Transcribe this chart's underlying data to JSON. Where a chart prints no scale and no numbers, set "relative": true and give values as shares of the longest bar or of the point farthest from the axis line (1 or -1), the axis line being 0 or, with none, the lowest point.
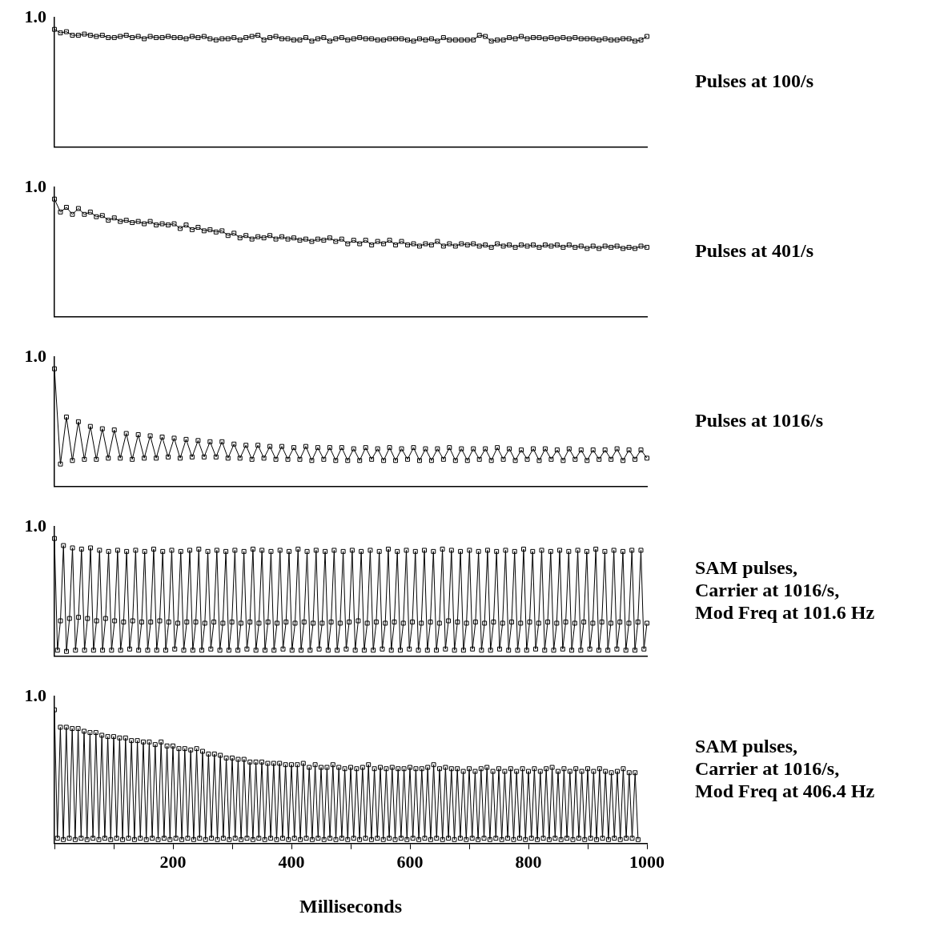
{
  "chart_data": [
    {
      "type": "line",
      "annotations": [
        "1.0",
        "Pulses at 100/s"
      ],
      "relative": true,
      "color": "#000000",
      "marker": "square",
      "categories": [
        null,
        null,
        null,
        null,
        null,
        null,
        null,
        null,
        null,
        null,
        null,
        null,
        null,
        null,
        null,
        null,
        null,
        null,
        null,
        null,
        null,
        null,
        null,
        null,
        null,
        null,
        null,
        null,
        null,
        null,
        null,
        null,
        null,
        null,
        null,
        null,
        null,
        null,
        null,
        null,
        null,
        null,
        null,
        null,
        null,
        null,
        null,
        null,
        null,
        null,
        null,
        null,
        null,
        null,
        null,
        null,
        null,
        null,
        null,
        null,
        null,
        null,
        null,
        null,
        null,
        null,
        null,
        null,
        null,
        null,
        null,
        null,
        null,
        null,
        null,
        null,
        null,
        null,
        null,
        null,
        null,
        null,
        null,
        null,
        null,
        null,
        null,
        null,
        null,
        null,
        null,
        null,
        null,
        null,
        null,
        null,
        null,
        null,
        null,
        null
      ],
      "values": [
        1,
        0.97,
        0.98,
        0.95,
        0.95,
        0.96,
        0.95,
        0.94,
        0.95,
        0.93,
        0.93,
        0.94,
        0.95,
        0.93,
        0.94,
        0.92,
        0.94,
        0.93,
        0.93,
        0.94,
        0.93,
        0.93,
        0.92,
        0.94,
        0.93,
        0.94,
        0.92,
        0.91,
        0.92,
        0.92,
        0.93,
        0.91,
        0.93,
        0.94,
        0.95,
        0.91,
        0.93,
        0.94,
        0.92,
        0.92,
        0.91,
        0.91,
        0.93,
        0.9,
        0.92,
        0.93,
        0.9,
        0.92,
        0.93,
        0.91,
        0.92,
        0.93,
        0.92,
        0.92,
        0.91,
        0.91,
        0.92,
        0.92,
        0.92,
        0.91,
        0.9,
        0.92,
        0.91,
        0.92,
        0.9,
        0.93,
        0.91,
        0.91,
        0.91,
        0.91,
        0.91,
        0.95,
        0.94,
        0.9,
        0.91,
        0.91,
        0.93,
        0.92,
        0.94,
        0.92,
        0.93,
        0.93,
        0.92,
        0.93,
        0.92,
        0.93,
        0.92,
        0.93,
        0.92,
        0.92,
        0.92,
        0.91,
        0.92,
        0.91,
        0.91,
        0.92,
        0.92,
        0.9,
        0.91,
        0.94
      ]
    },
    {
      "type": "line",
      "annotations": [
        "1.0",
        "Pulses at 401/s"
      ],
      "relative": true,
      "color": "#000000",
      "marker": "square",
      "categories": [
        null,
        null,
        null,
        null,
        null,
        null,
        null,
        null,
        null,
        null,
        null,
        null,
        null,
        null,
        null,
        null,
        null,
        null,
        null,
        null,
        null,
        null,
        null,
        null,
        null,
        null,
        null,
        null,
        null,
        null,
        null,
        null,
        null,
        null,
        null,
        null,
        null,
        null,
        null,
        null,
        null,
        null,
        null,
        null,
        null,
        null,
        null,
        null,
        null,
        null,
        null,
        null,
        null,
        null,
        null,
        null,
        null,
        null,
        null,
        null,
        null,
        null,
        null,
        null,
        null,
        null,
        null,
        null,
        null,
        null,
        null,
        null,
        null,
        null,
        null,
        null,
        null,
        null,
        null,
        null,
        null,
        null,
        null,
        null,
        null,
        null,
        null,
        null,
        null,
        null,
        null,
        null,
        null,
        null,
        null,
        null,
        null,
        null,
        null,
        null
      ],
      "values": [
        1,
        0.89,
        0.93,
        0.87,
        0.92,
        0.87,
        0.89,
        0.85,
        0.86,
        0.82,
        0.84,
        0.81,
        0.82,
        0.8,
        0.81,
        0.79,
        0.81,
        0.78,
        0.79,
        0.78,
        0.79,
        0.75,
        0.78,
        0.74,
        0.76,
        0.73,
        0.74,
        0.72,
        0.73,
        0.69,
        0.71,
        0.67,
        0.69,
        0.66,
        0.68,
        0.67,
        0.69,
        0.66,
        0.68,
        0.66,
        0.67,
        0.65,
        0.66,
        0.64,
        0.66,
        0.65,
        0.67,
        0.64,
        0.66,
        0.62,
        0.65,
        0.62,
        0.65,
        0.61,
        0.64,
        0.62,
        0.65,
        0.61,
        0.64,
        0.61,
        0.62,
        0.6,
        0.62,
        0.61,
        0.64,
        0.6,
        0.62,
        0.6,
        0.62,
        0.61,
        0.62,
        0.6,
        0.61,
        0.59,
        0.62,
        0.6,
        0.61,
        0.59,
        0.61,
        0.6,
        0.61,
        0.59,
        0.61,
        0.6,
        0.61,
        0.59,
        0.61,
        0.59,
        0.6,
        0.58,
        0.6,
        0.58,
        0.6,
        0.59,
        0.6,
        0.58,
        0.59,
        0.58,
        0.6,
        0.59
      ]
    },
    {
      "type": "line",
      "annotations": [
        "1.0",
        "Pulses at 1016/s"
      ],
      "relative": true,
      "color": "#000000",
      "marker": "square",
      "categories": [
        null,
        null,
        null,
        null,
        null,
        null,
        null,
        null,
        null,
        null,
        null,
        null,
        null,
        null,
        null,
        null,
        null,
        null,
        null,
        null,
        null,
        null,
        null,
        null,
        null,
        null,
        null,
        null,
        null,
        null,
        null,
        null,
        null,
        null,
        null,
        null,
        null,
        null,
        null,
        null,
        null,
        null,
        null,
        null,
        null,
        null,
        null,
        null,
        null,
        null,
        null,
        null,
        null,
        null,
        null,
        null,
        null,
        null,
        null,
        null,
        null,
        null,
        null,
        null,
        null,
        null,
        null,
        null,
        null,
        null,
        null,
        null,
        null,
        null,
        null,
        null,
        null,
        null,
        null,
        null,
        null,
        null,
        null,
        null,
        null,
        null,
        null,
        null,
        null,
        null,
        null,
        null,
        null,
        null,
        null,
        null,
        null,
        null,
        null,
        null
      ],
      "values": [
        1,
        0.19,
        0.59,
        0.22,
        0.55,
        0.23,
        0.51,
        0.23,
        0.49,
        0.24,
        0.48,
        0.24,
        0.45,
        0.23,
        0.44,
        0.24,
        0.43,
        0.24,
        0.42,
        0.25,
        0.41,
        0.24,
        0.4,
        0.25,
        0.39,
        0.25,
        0.38,
        0.25,
        0.38,
        0.24,
        0.36,
        0.24,
        0.35,
        0.23,
        0.35,
        0.24,
        0.34,
        0.23,
        0.34,
        0.23,
        0.33,
        0.23,
        0.34,
        0.22,
        0.33,
        0.23,
        0.33,
        0.22,
        0.33,
        0.22,
        0.32,
        0.22,
        0.33,
        0.23,
        0.32,
        0.22,
        0.33,
        0.22,
        0.32,
        0.23,
        0.33,
        0.22,
        0.32,
        0.22,
        0.32,
        0.23,
        0.33,
        0.22,
        0.32,
        0.22,
        0.32,
        0.23,
        0.32,
        0.22,
        0.33,
        0.23,
        0.32,
        0.22,
        0.31,
        0.23,
        0.32,
        0.22,
        0.32,
        0.23,
        0.31,
        0.22,
        0.32,
        0.23,
        0.31,
        0.22,
        0.31,
        0.23,
        0.31,
        0.23,
        0.32,
        0.22,
        0.31,
        0.23,
        0.31,
        0.24
      ]
    },
    {
      "type": "line",
      "annotations": [
        "1.0",
        "SAM pulses,\nCarrier at 1016/s,\nMod Freq at 101.6 Hz"
      ],
      "relative": true,
      "color": "#000000",
      "marker": "square",
      "categories": [
        null,
        null,
        null,
        null,
        null,
        null,
        null,
        null,
        null,
        null,
        null,
        null,
        null,
        null,
        null,
        null,
        null,
        null,
        null,
        null,
        null,
        null,
        null,
        null,
        null,
        null,
        null,
        null,
        null,
        null,
        null,
        null,
        null,
        null,
        null,
        null,
        null,
        null,
        null,
        null,
        null,
        null,
        null,
        null,
        null,
        null,
        null,
        null,
        null,
        null,
        null,
        null,
        null,
        null,
        null,
        null,
        null,
        null,
        null,
        null,
        null,
        null,
        null,
        null,
        null,
        null,
        null,
        null,
        null,
        null,
        null,
        null,
        null,
        null,
        null,
        null,
        null,
        null,
        null,
        null,
        null,
        null,
        null,
        null,
        null,
        null,
        null,
        null,
        null,
        null,
        null,
        null,
        null,
        null,
        null,
        null,
        null,
        null,
        null,
        null,
        null,
        null,
        null,
        null,
        null,
        null,
        null,
        null,
        null,
        null,
        null,
        null,
        null,
        null,
        null,
        null,
        null,
        null,
        null,
        null,
        null,
        null,
        null,
        null,
        null,
        null,
        null,
        null,
        null,
        null,
        null,
        null,
        null,
        null,
        null,
        null,
        null,
        null,
        null,
        null,
        null,
        null,
        null,
        null,
        null,
        null,
        null,
        null,
        null,
        null,
        null,
        null,
        null,
        null,
        null,
        null,
        null,
        null,
        null,
        null,
        null,
        null,
        null,
        null,
        null,
        null,
        null,
        null,
        null,
        null,
        null,
        null,
        null,
        null,
        null,
        null,
        null,
        null,
        null,
        null,
        null,
        null,
        null,
        null,
        null,
        null,
        null,
        null,
        null,
        null,
        null,
        null,
        null,
        null,
        null,
        null,
        null,
        null
      ],
      "values": [
        1,
        0.05,
        0.3,
        0.94,
        0.04,
        0.32,
        0.92,
        0.05,
        0.33,
        0.91,
        0.05,
        0.32,
        0.92,
        0.05,
        0.3,
        0.9,
        0.05,
        0.32,
        0.89,
        0.05,
        0.3,
        0.9,
        0.05,
        0.29,
        0.89,
        0.06,
        0.3,
        0.9,
        0.05,
        0.29,
        0.89,
        0.05,
        0.29,
        0.91,
        0.05,
        0.3,
        0.89,
        0.05,
        0.29,
        0.9,
        0.06,
        0.28,
        0.89,
        0.05,
        0.29,
        0.9,
        0.05,
        0.29,
        0.91,
        0.05,
        0.28,
        0.89,
        0.06,
        0.29,
        0.9,
        0.05,
        0.28,
        0.89,
        0.05,
        0.29,
        0.9,
        0.05,
        0.28,
        0.89,
        0.06,
        0.29,
        0.91,
        0.05,
        0.28,
        0.9,
        0.05,
        0.29,
        0.89,
        0.05,
        0.28,
        0.9,
        0.06,
        0.29,
        0.89,
        0.05,
        0.28,
        0.91,
        0.05,
        0.29,
        0.89,
        0.05,
        0.28,
        0.9,
        0.06,
        0.28,
        0.89,
        0.05,
        0.29,
        0.9,
        0.05,
        0.28,
        0.89,
        0.06,
        0.29,
        0.9,
        0.05,
        0.3,
        0.89,
        0.05,
        0.28,
        0.9,
        0.05,
        0.29,
        0.89,
        0.06,
        0.28,
        0.91,
        0.05,
        0.29,
        0.89,
        0.05,
        0.28,
        0.9,
        0.06,
        0.29,
        0.89,
        0.05,
        0.28,
        0.9,
        0.05,
        0.29,
        0.89,
        0.05,
        0.28,
        0.91,
        0.06,
        0.3,
        0.9,
        0.05,
        0.29,
        0.89,
        0.05,
        0.28,
        0.9,
        0.06,
        0.29,
        0.89,
        0.05,
        0.28,
        0.9,
        0.05,
        0.29,
        0.89,
        0.06,
        0.28,
        0.9,
        0.05,
        0.29,
        0.89,
        0.05,
        0.28,
        0.91,
        0.05,
        0.29,
        0.89,
        0.06,
        0.28,
        0.9,
        0.05,
        0.29,
        0.89,
        0.05,
        0.28,
        0.9,
        0.06,
        0.29,
        0.89,
        0.05,
        0.28,
        0.9,
        0.05,
        0.29,
        0.89,
        0.06,
        0.28,
        0.91,
        0.05,
        0.29,
        0.89,
        0.05,
        0.28,
        0.9,
        0.06,
        0.29,
        0.89,
        0.05,
        0.28,
        0.9,
        0.05,
        0.29,
        0.9,
        0.06,
        0.28
      ]
    },
    {
      "type": "line",
      "annotations": [
        "1.0",
        "SAM pulses,\nCarrier at 1016/s,\nMod Freq at 406.4 Hz"
      ],
      "relative": true,
      "xlabel": "Milliseconds",
      "color": "#000000",
      "marker": "square",
      "xlim": [
        0,
        1000
      ],
      "xticks": [
        {
          "value": 0,
          "label": null
        },
        {
          "value": 100,
          "label": null
        },
        200,
        {
          "value": 300,
          "label": null
        },
        400,
        {
          "value": 500,
          "label": null
        },
        600,
        {
          "value": 700,
          "label": null
        },
        800,
        {
          "value": 900,
          "label": null
        },
        1000
      ],
      "x": [
        0,
        5,
        10,
        15,
        20,
        25,
        30,
        35,
        40,
        45,
        50,
        55,
        60,
        65,
        70,
        75,
        80,
        85,
        90,
        95,
        100,
        105,
        110,
        115,
        120,
        125,
        130,
        135,
        140,
        145,
        150,
        155,
        160,
        165,
        170,
        175,
        180,
        185,
        190,
        195,
        200,
        205,
        210,
        215,
        220,
        225,
        230,
        235,
        240,
        245,
        250,
        255,
        260,
        265,
        270,
        275,
        280,
        285,
        290,
        295,
        300,
        305,
        310,
        315,
        320,
        325,
        330,
        335,
        340,
        345,
        350,
        355,
        360,
        365,
        370,
        375,
        380,
        385,
        390,
        395,
        400,
        405,
        410,
        415,
        420,
        425,
        430,
        435,
        440,
        445,
        450,
        455,
        460,
        465,
        470,
        475,
        480,
        485,
        490,
        495,
        500,
        505,
        510,
        515,
        520,
        525,
        530,
        535,
        540,
        545,
        550,
        555,
        560,
        565,
        570,
        575,
        580,
        585,
        590,
        595,
        600,
        605,
        610,
        615,
        620,
        625,
        630,
        635,
        640,
        645,
        650,
        655,
        660,
        665,
        670,
        675,
        680,
        685,
        690,
        695,
        700,
        705,
        710,
        715,
        720,
        725,
        730,
        735,
        740,
        745,
        750,
        755,
        760,
        765,
        770,
        775,
        780,
        785,
        790,
        795,
        800,
        805,
        810,
        815,
        820,
        825,
        830,
        835,
        840,
        845,
        850,
        855,
        860,
        865,
        870,
        875,
        880,
        885,
        890,
        895,
        900,
        905,
        910,
        915,
        920,
        925,
        930,
        935,
        940,
        945,
        950,
        955,
        960,
        965,
        970,
        975,
        980,
        985
      ],
      "values": [
        1,
        0.04,
        0.87,
        0.03,
        0.87,
        0.04,
        0.86,
        0.03,
        0.86,
        0.04,
        0.84,
        0.03,
        0.83,
        0.04,
        0.83,
        0.03,
        0.81,
        0.04,
        0.8,
        0.03,
        0.8,
        0.04,
        0.79,
        0.03,
        0.79,
        0.04,
        0.77,
        0.03,
        0.77,
        0.04,
        0.76,
        0.03,
        0.76,
        0.04,
        0.74,
        0.03,
        0.76,
        0.04,
        0.73,
        0.03,
        0.73,
        0.04,
        0.71,
        0.03,
        0.71,
        0.04,
        0.7,
        0.03,
        0.71,
        0.04,
        0.69,
        0.03,
        0.67,
        0.04,
        0.67,
        0.03,
        0.66,
        0.04,
        0.64,
        0.03,
        0.64,
        0.04,
        0.63,
        0.03,
        0.63,
        0.04,
        0.61,
        0.03,
        0.61,
        0.04,
        0.61,
        0.03,
        0.6,
        0.04,
        0.6,
        0.03,
        0.6,
        0.04,
        0.59,
        0.03,
        0.59,
        0.04,
        0.59,
        0.03,
        0.6,
        0.04,
        0.57,
        0.03,
        0.59,
        0.04,
        0.57,
        0.03,
        0.57,
        0.04,
        0.59,
        0.03,
        0.57,
        0.04,
        0.56,
        0.03,
        0.57,
        0.04,
        0.56,
        0.03,
        0.57,
        0.04,
        0.59,
        0.03,
        0.56,
        0.04,
        0.57,
        0.03,
        0.56,
        0.04,
        0.57,
        0.03,
        0.56,
        0.04,
        0.56,
        0.03,
        0.57,
        0.04,
        0.56,
        0.03,
        0.56,
        0.04,
        0.57,
        0.03,
        0.59,
        0.04,
        0.56,
        0.03,
        0.57,
        0.04,
        0.56,
        0.03,
        0.56,
        0.04,
        0.54,
        0.03,
        0.56,
        0.04,
        0.54,
        0.03,
        0.56,
        0.04,
        0.57,
        0.03,
        0.54,
        0.04,
        0.56,
        0.03,
        0.54,
        0.04,
        0.56,
        0.03,
        0.54,
        0.04,
        0.56,
        0.03,
        0.54,
        0.04,
        0.56,
        0.03,
        0.54,
        0.04,
        0.56,
        0.03,
        0.57,
        0.04,
        0.54,
        0.03,
        0.56,
        0.04,
        0.54,
        0.03,
        0.56,
        0.04,
        0.54,
        0.03,
        0.56,
        0.04,
        0.54,
        0.03,
        0.56,
        0.04,
        0.54,
        0.03,
        0.53,
        0.04,
        0.54,
        0.03,
        0.56,
        0.04,
        0.53,
        0.04,
        0.53,
        0.03
      ]
    }
  ]
}
